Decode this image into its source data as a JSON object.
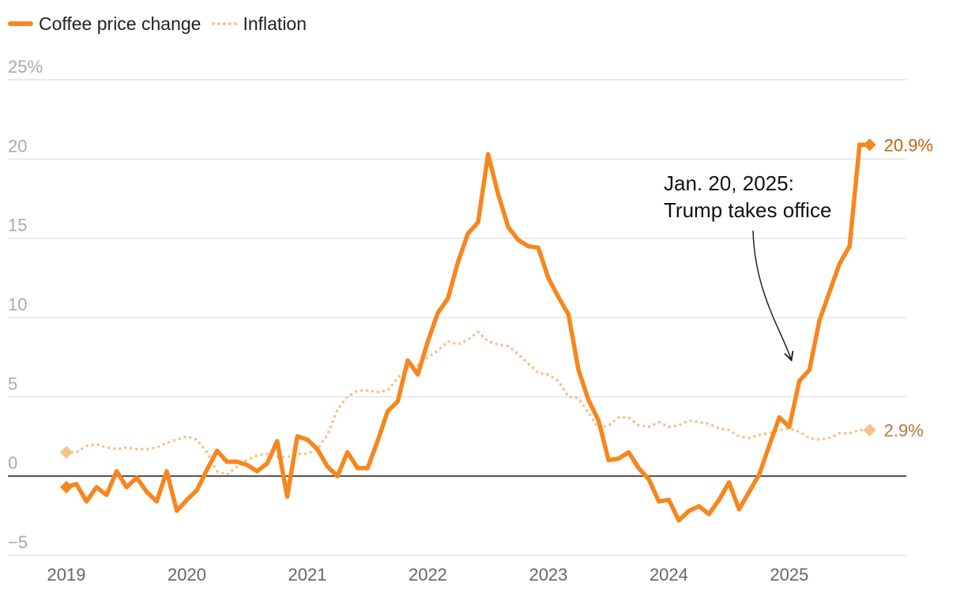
{
  "legend": {
    "coffee_label": "Coffee price change",
    "inflation_label": "Inflation"
  },
  "chart_data": {
    "type": "line",
    "title": "",
    "xlabel": "",
    "ylabel": "",
    "ylim": [
      -5,
      25
    ],
    "xlim": [
      2019.0,
      2025.84
    ],
    "y_ticks": [
      {
        "value": 25,
        "label": "25%"
      },
      {
        "value": 20,
        "label": "20"
      },
      {
        "value": 15,
        "label": "15"
      },
      {
        "value": 10,
        "label": "10"
      },
      {
        "value": 5,
        "label": "5"
      },
      {
        "value": 0,
        "label": "0"
      },
      {
        "value": -5,
        "label": "−5"
      }
    ],
    "x_ticks": [
      {
        "value": 2019,
        "label": "2019"
      },
      {
        "value": 2020,
        "label": "2020"
      },
      {
        "value": 2021,
        "label": "2021"
      },
      {
        "value": 2022,
        "label": "2022"
      },
      {
        "value": 2023,
        "label": "2023"
      },
      {
        "value": 2024,
        "label": "2024"
      },
      {
        "value": 2025,
        "label": "2025"
      }
    ],
    "grid": true,
    "legend_position": "top-left",
    "colors": {
      "coffee": "#f7861e",
      "inflation": "#f8c08a",
      "coffee_label": "#c0640f",
      "inflation_label": "#b07a3c",
      "grid": "#dddddd",
      "zero_line": "#222222",
      "tick_text": "#aaaaaa",
      "year_text": "#666666"
    },
    "series": [
      {
        "name": "Coffee price change",
        "style": "solid",
        "end_label": "20.9%",
        "x": [
          2019.0,
          2019.083,
          2019.167,
          2019.25,
          2019.333,
          2019.417,
          2019.5,
          2019.583,
          2019.667,
          2019.75,
          2019.833,
          2019.917,
          2020.0,
          2020.083,
          2020.167,
          2020.25,
          2020.333,
          2020.417,
          2020.5,
          2020.583,
          2020.667,
          2020.75,
          2020.833,
          2020.917,
          2021.0,
          2021.083,
          2021.167,
          2021.25,
          2021.333,
          2021.417,
          2021.5,
          2021.583,
          2021.667,
          2021.75,
          2021.833,
          2021.917,
          2022.0,
          2022.083,
          2022.167,
          2022.25,
          2022.333,
          2022.417,
          2022.5,
          2022.583,
          2022.667,
          2022.75,
          2022.833,
          2022.917,
          2023.0,
          2023.083,
          2023.167,
          2023.25,
          2023.333,
          2023.417,
          2023.5,
          2023.583,
          2023.667,
          2023.75,
          2023.833,
          2023.917,
          2024.0,
          2024.083,
          2024.167,
          2024.25,
          2024.333,
          2024.417,
          2024.5,
          2024.583,
          2024.667,
          2024.75,
          2024.833,
          2024.917,
          2025.0,
          2025.083,
          2025.167,
          2025.25,
          2025.333,
          2025.417,
          2025.5,
          2025.583,
          2025.667
        ],
        "values": [
          -0.7,
          -0.5,
          -1.6,
          -0.7,
          -1.2,
          0.3,
          -0.7,
          -0.1,
          -1.0,
          -1.6,
          0.3,
          -2.2,
          -1.5,
          -0.9,
          0.4,
          1.6,
          0.9,
          0.9,
          0.7,
          0.3,
          0.8,
          2.2,
          -1.3,
          2.5,
          2.3,
          1.7,
          0.6,
          0.0,
          1.5,
          0.5,
          0.5,
          2.2,
          4.1,
          4.7,
          7.3,
          6.4,
          8.5,
          10.3,
          11.2,
          13.5,
          15.3,
          16.0,
          20.3,
          17.8,
          15.7,
          14.9,
          14.5,
          14.4,
          12.5,
          11.3,
          10.2,
          6.7,
          4.8,
          3.5,
          1.0,
          1.1,
          1.5,
          0.5,
          -0.2,
          -1.6,
          -1.5,
          -2.8,
          -2.2,
          -1.9,
          -2.4,
          -1.5,
          -0.4,
          -2.1,
          -1.0,
          0.1,
          1.9,
          3.7,
          3.1,
          6.0,
          6.7,
          9.8,
          11.6,
          13.4,
          14.5,
          20.9,
          20.9
        ]
      },
      {
        "name": "Inflation",
        "style": "dotted",
        "end_label": "2.9%",
        "x": [
          2019.0,
          2019.083,
          2019.167,
          2019.25,
          2019.333,
          2019.417,
          2019.5,
          2019.583,
          2019.667,
          2019.75,
          2019.833,
          2019.917,
          2020.0,
          2020.083,
          2020.167,
          2020.25,
          2020.333,
          2020.417,
          2020.5,
          2020.583,
          2020.667,
          2020.75,
          2020.833,
          2020.917,
          2021.0,
          2021.083,
          2021.167,
          2021.25,
          2021.333,
          2021.417,
          2021.5,
          2021.583,
          2021.667,
          2021.75,
          2021.833,
          2021.917,
          2022.0,
          2022.083,
          2022.167,
          2022.25,
          2022.333,
          2022.417,
          2022.5,
          2022.583,
          2022.667,
          2022.75,
          2022.833,
          2022.917,
          2023.0,
          2023.083,
          2023.167,
          2023.25,
          2023.333,
          2023.417,
          2023.5,
          2023.583,
          2023.667,
          2023.75,
          2023.833,
          2023.917,
          2024.0,
          2024.083,
          2024.167,
          2024.25,
          2024.333,
          2024.417,
          2024.5,
          2024.583,
          2024.667,
          2024.75,
          2024.833,
          2024.917,
          2025.0,
          2025.083,
          2025.167,
          2025.25,
          2025.333,
          2025.417,
          2025.5,
          2025.583,
          2025.667
        ],
        "values": [
          1.5,
          1.5,
          1.9,
          2.0,
          1.8,
          1.7,
          1.8,
          1.7,
          1.7,
          1.8,
          2.1,
          2.3,
          2.5,
          2.3,
          1.5,
          0.3,
          0.1,
          0.6,
          1.0,
          1.3,
          1.4,
          1.2,
          1.2,
          1.4,
          1.4,
          1.7,
          2.6,
          4.2,
          5.0,
          5.4,
          5.4,
          5.3,
          5.4,
          6.2,
          6.8,
          7.0,
          7.5,
          7.9,
          8.5,
          8.3,
          8.6,
          9.1,
          8.5,
          8.3,
          8.2,
          7.7,
          7.1,
          6.5,
          6.4,
          6.0,
          5.0,
          4.9,
          4.0,
          3.0,
          3.2,
          3.7,
          3.7,
          3.2,
          3.1,
          3.4,
          3.1,
          3.2,
          3.5,
          3.4,
          3.3,
          3.0,
          2.9,
          2.5,
          2.4,
          2.6,
          2.7,
          2.9,
          3.0,
          2.8,
          2.4,
          2.3,
          2.4,
          2.7,
          2.7,
          2.9,
          2.9
        ]
      }
    ],
    "annotations": [
      {
        "text_lines": [
          "Jan. 20, 2025:",
          "Trump takes office"
        ],
        "target_x": 2025.05,
        "target_y": 7.5
      }
    ]
  }
}
